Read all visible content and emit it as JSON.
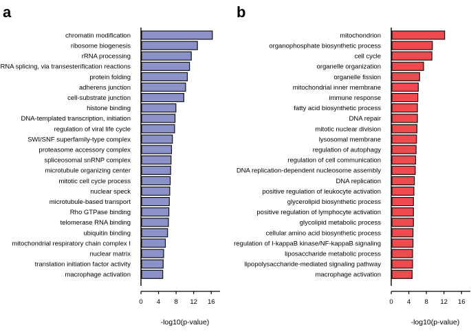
{
  "chart_data": [
    {
      "panel": "a",
      "type": "bar",
      "orientation": "horizontal",
      "xlabel": "-log10(p-value)",
      "xlim": [
        0,
        18
      ],
      "xticks": [
        "0",
        "4",
        "8",
        "12",
        "16"
      ],
      "bar_color": "#8b91c9",
      "categories": [
        "chromatin modification",
        "ribosome biogenesis",
        "rRNA processing",
        "RNA splicing, via transesterification reactions",
        "protein folding",
        "adherens junction",
        "cell-substrate junction",
        "histone binding",
        "DNA-templated transcription, initiation",
        "regulation of viral life cycle",
        "SWI/SNF superfamily-type complex",
        "proteasome accessory complex",
        "spliceosomal snRNP complex",
        "microtubule organizing center",
        "mitotic cell cycle process",
        "nuclear speck",
        "microtubule-based transport",
        "Rho GTPase binding",
        "telomerase RNA binding",
        "ubiquitin binding",
        "mitochondrial respiratory chain complex I",
        "nuclear matrix",
        "translation initiation factor activity",
        "macrophage activation"
      ],
      "values": [
        16.1,
        12.7,
        11.3,
        10.9,
        10.4,
        10.0,
        9.6,
        7.8,
        7.6,
        7.5,
        7.0,
        6.8,
        6.7,
        6.6,
        6.5,
        6.4,
        6.3,
        6.2,
        6.1,
        5.9,
        5.4,
        5.0,
        4.9,
        4.8
      ]
    },
    {
      "panel": "b",
      "type": "bar",
      "orientation": "horizontal",
      "xlabel": "-log10(p-value)",
      "xlim": [
        0,
        18
      ],
      "xticks": [
        "0",
        "4",
        "8",
        "12",
        "16"
      ],
      "bar_color": "#f0494e",
      "categories": [
        "mitochondrion",
        "organophosphate biosynthetic process",
        "cell cycle",
        "organelle organization",
        "organelle fission",
        "mitochondrial inner membrane",
        "immune response",
        "fatty acid biosynthetic process",
        "DNA repair",
        "mitotic nuclear division",
        "lysosomal membrane",
        "regulation of autophagy",
        "regulation of cell communication",
        "DNA replication-dependent nucleosome assembly",
        "DNA replication",
        "positive regulation of leukocyte activation",
        "glycerolipid biosynthetic process",
        "positive regulation of lymphocyte activation",
        "glycolipid metabolic process",
        "cellular amino acid biosynthetic process",
        "regulation of I-kappaB kinase/NF-kappaB signaling",
        "liposaccharide metabolic process",
        "lipopolysaccharide-mediated signaling pathway",
        "macrophage activation"
      ],
      "values": [
        12.0,
        9.2,
        9.1,
        7.2,
        6.3,
        6.0,
        5.9,
        5.8,
        5.8,
        5.7,
        5.6,
        5.5,
        5.4,
        5.3,
        5.1,
        5.0,
        4.9,
        4.9,
        4.9,
        4.8,
        4.8,
        4.7,
        4.7,
        4.6
      ]
    }
  ]
}
